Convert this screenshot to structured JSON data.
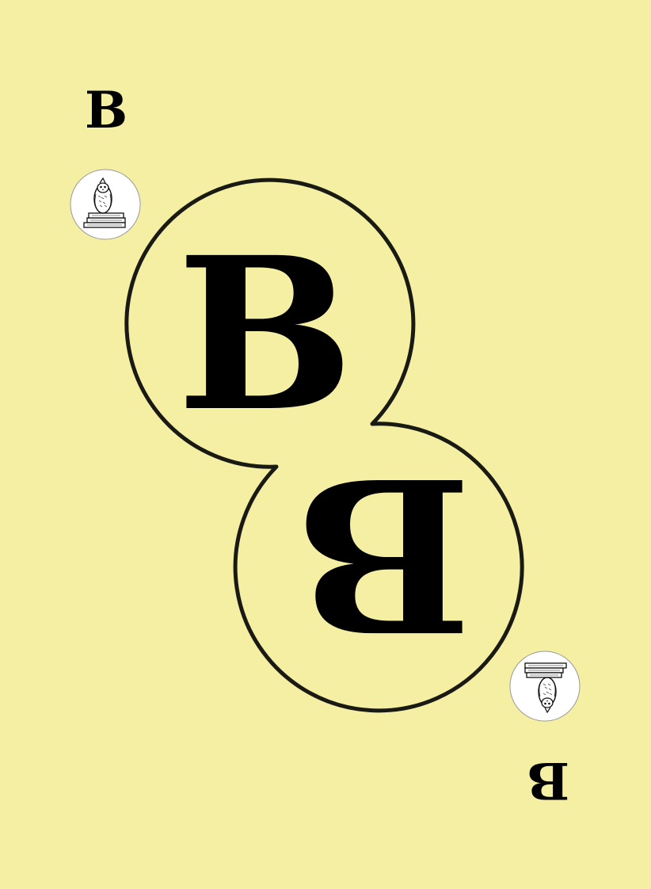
{
  "card": {
    "rank": "B",
    "corner_top_label": "B",
    "corner_bottom_label": "B",
    "center_top_letter": "B",
    "center_bottom_letter": "B",
    "emblem_top": "owl-on-books-icon",
    "emblem_bottom": "owl-on-books-icon",
    "background_color": "#f5efa4",
    "outline_color": "#1a1a14",
    "ink_color": "#000000"
  }
}
